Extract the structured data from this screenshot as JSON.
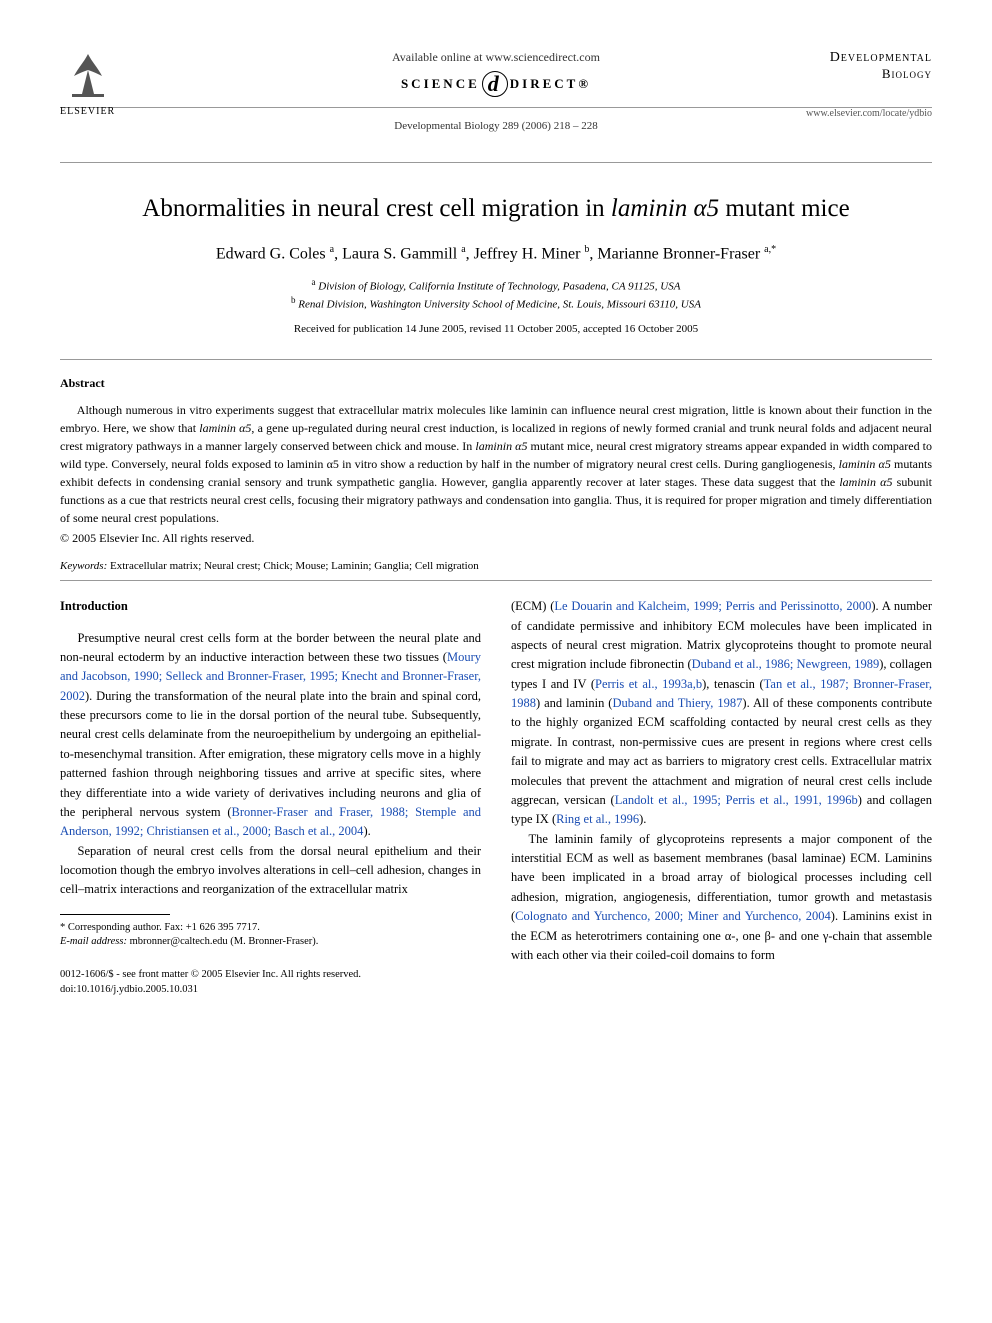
{
  "header": {
    "available_online": "Available online at www.sciencedirect.com",
    "sd_left": "SCIENCE",
    "sd_right": "DIRECT®",
    "citation": "Developmental Biology 289 (2006) 218 – 228",
    "elsevier": "ELSEVIER",
    "journal_title": "Developmental",
    "journal_subtitle": "Biology",
    "journal_url": "www.elsevier.com/locate/ydbio"
  },
  "article": {
    "title_pre": "Abnormalities in neural crest cell migration in ",
    "title_italic": "laminin α5",
    "title_post": " mutant mice",
    "authors_html": "Edward G. Coles <sup>a</sup>, Laura S. Gammill <sup>a</sup>, Jeffrey H. Miner <sup>b</sup>, Marianne Bronner-Fraser <sup>a,*</sup>",
    "affiliation_a": "Division of Biology, California Institute of Technology, Pasadena, CA 91125, USA",
    "affiliation_b": "Renal Division, Washington University School of Medicine, St. Louis, Missouri 63110, USA",
    "received": "Received for publication 14 June 2005, revised 11 October 2005, accepted 16 October 2005"
  },
  "abstract": {
    "label": "Abstract",
    "text_html": "Although numerous in vitro experiments suggest that extracellular matrix molecules like laminin can influence neural crest migration, little is known about their function in the embryo. Here, we show that <span class=\"italic\">laminin α5</span>, a gene up-regulated during neural crest induction, is localized in regions of newly formed cranial and trunk neural folds and adjacent neural crest migratory pathways in a manner largely conserved between chick and mouse. In <span class=\"italic\">laminin α5</span> mutant mice, neural crest migratory streams appear expanded in width compared to wild type. Conversely, neural folds exposed to laminin α5 in vitro show a reduction by half in the number of migratory neural crest cells. During gangliogenesis, <span class=\"italic\">laminin α5</span> mutants exhibit defects in condensing cranial sensory and trunk sympathetic ganglia. However, ganglia apparently recover at later stages. These data suggest that the <span class=\"italic\">laminin α5</span> subunit functions as a cue that restricts neural crest cells, focusing their migratory pathways and condensation into ganglia. Thus, it is required for proper migration and timely differentiation of some neural crest populations.",
    "copyright": "© 2005 Elsevier Inc. All rights reserved.",
    "keywords_label": "Keywords:",
    "keywords": " Extracellular matrix; Neural crest; Chick; Mouse; Laminin; Ganglia; Cell migration"
  },
  "body": {
    "intro_heading": "Introduction",
    "col1_p1_html": "Presumptive neural crest cells form at the border between the neural plate and non-neural ectoderm by an inductive interaction between these two tissues (<span class=\"ref-link\">Moury and Jacobson, 1990; Selleck and Bronner-Fraser, 1995; Knecht and Bronner-Fraser, 2002</span>). During the transformation of the neural plate into the brain and spinal cord, these precursors come to lie in the dorsal portion of the neural tube. Subsequently, neural crest cells delaminate from the neuroepithelium by undergoing an epithelial-to-mesenchymal transition. After emigration, these migratory cells move in a highly patterned fashion through neighboring tissues and arrive at specific sites, where they differentiate into a wide variety of derivatives including neurons and glia of the peripheral nervous system (<span class=\"ref-link\">Bronner-Fraser and Fraser, 1988; Stemple and Anderson, 1992; Christiansen et al., 2000; Basch et al., 2004</span>).",
    "col1_p2_html": "Separation of neural crest cells from the dorsal neural epithelium and their locomotion though the embryo involves alterations in cell–cell adhesion, changes in cell–matrix interactions and reorganization of the extracellular matrix",
    "col2_p1_html": "(ECM) (<span class=\"ref-link\">Le Douarin and Kalcheim, 1999; Perris and Perissinotto, 2000</span>). A number of candidate permissive and inhibitory ECM molecules have been implicated in aspects of neural crest migration. Matrix glycoproteins thought to promote neural crest migration include fibronectin (<span class=\"ref-link\">Duband et al., 1986; Newgreen, 1989</span>), collagen types I and IV (<span class=\"ref-link\">Perris et al., 1993a,b</span>), tenascin (<span class=\"ref-link\">Tan et al., 1987; Bronner-Fraser, 1988</span>) and laminin (<span class=\"ref-link\">Duband and Thiery, 1987</span>). All of these components contribute to the highly organized ECM scaffolding contacted by neural crest cells as they migrate. In contrast, non-permissive cues are present in regions where crest cells fail to migrate and may act as barriers to migratory crest cells. Extracellular matrix molecules that prevent the attachment and migration of neural crest cells include aggrecan, versican (<span class=\"ref-link\">Landolt et al., 1995; Perris et al., 1991, 1996b</span>) and collagen type IX (<span class=\"ref-link\">Ring et al., 1996</span>).",
    "col2_p2_html": "The laminin family of glycoproteins represents a major component of the interstitial ECM as well as basement membranes (basal laminae) ECM. Laminins have been implicated in a broad array of biological processes including cell adhesion, migration, angiogenesis, differentiation, tumor growth and metastasis (<span class=\"ref-link\">Colognato and Yurchenco, 2000; Miner and Yurchenco, 2004</span>). Laminins exist in the ECM as heterotrimers containing one α-, one β- and one γ-chain that assemble with each other via their coiled-coil domains to form"
  },
  "footnotes": {
    "corresponding": "* Corresponding author. Fax: +1 626 395 7717.",
    "email_label": "E-mail address:",
    "email": " mbronner@caltech.edu (M. Bronner-Fraser)."
  },
  "footer": {
    "line1": "0012-1606/$ - see front matter © 2005 Elsevier Inc. All rights reserved.",
    "line2": "doi:10.1016/j.ydbio.2005.10.031"
  },
  "colors": {
    "text": "#000000",
    "link": "#1a4db3",
    "rule": "#999999",
    "background": "#ffffff"
  }
}
